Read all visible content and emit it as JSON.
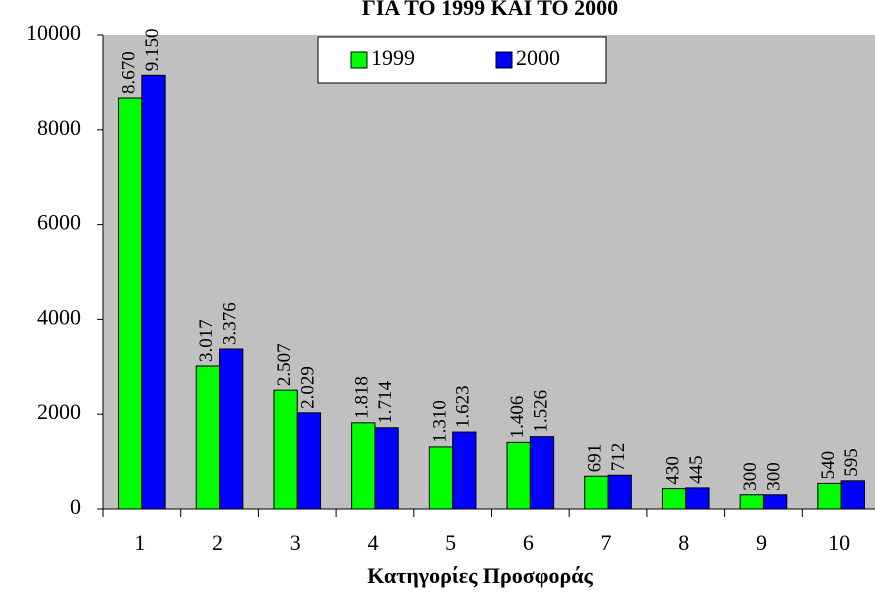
{
  "chart_data": {
    "type": "bar",
    "title": "ΓΙΑ ΤΟ 1999 ΚΑΙ ΤΟ 2000",
    "x_label": "Κατηγορίες Προσφοράς",
    "categories": [
      "1",
      "2",
      "3",
      "4",
      "5",
      "6",
      "7",
      "8",
      "9",
      "10"
    ],
    "series": [
      {
        "name": "1999",
        "color": "#00ff00",
        "values": [
          8670,
          3017,
          2507,
          1818,
          1310,
          1406,
          691,
          430,
          300,
          540
        ],
        "value_labels": [
          "8.670",
          "3.017",
          "2.507",
          "1.818",
          "1.310",
          "1.406",
          "691",
          "430",
          "300",
          "540"
        ]
      },
      {
        "name": "2000",
        "color": "#0000ff",
        "values": [
          9150,
          3376,
          2029,
          1714,
          1623,
          1526,
          712,
          445,
          300,
          595
        ],
        "value_labels": [
          "9.150",
          "3.376",
          "2.029",
          "1.714",
          "1.623",
          "1.526",
          "712",
          "445",
          "300",
          "595"
        ]
      }
    ],
    "ylim": [
      0,
      10000
    ],
    "yticks": [
      0,
      2000,
      4000,
      6000,
      8000,
      10000
    ],
    "legend": "top",
    "background": "#c0c0c0"
  }
}
